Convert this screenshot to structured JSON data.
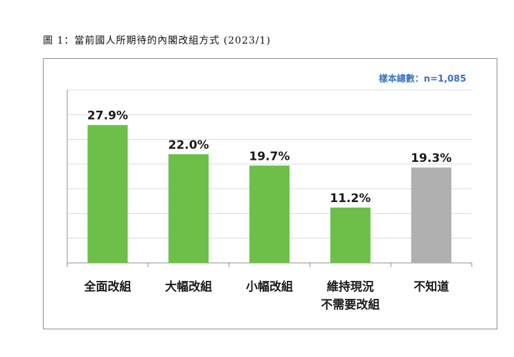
{
  "caption": "圖 1：當前國人所期待的內閣改組方式  (2023/1)",
  "sample_note": "樣本總數：n=1,085",
  "colors": {
    "green": "#6cc04a",
    "gray": "#b0b0b0",
    "grid": "#d9d9d9",
    "axis": "#8c8c8c"
  },
  "chart_data": {
    "type": "bar",
    "title": "",
    "xlabel": "",
    "ylabel": "",
    "ylim": [
      0,
      35
    ],
    "grid": true,
    "categories": [
      [
        "全面改組"
      ],
      [
        "大幅改組"
      ],
      [
        "小幅改組"
      ],
      [
        "維持現況",
        "不需要改組"
      ],
      [
        "不知道"
      ]
    ],
    "values": [
      27.9,
      22.0,
      19.7,
      11.2,
      19.3
    ],
    "value_labels": [
      "27.9%",
      "22.0%",
      "19.7%",
      "11.2%",
      "19.3%"
    ],
    "bar_colors": [
      "green",
      "green",
      "green",
      "green",
      "gray"
    ]
  }
}
